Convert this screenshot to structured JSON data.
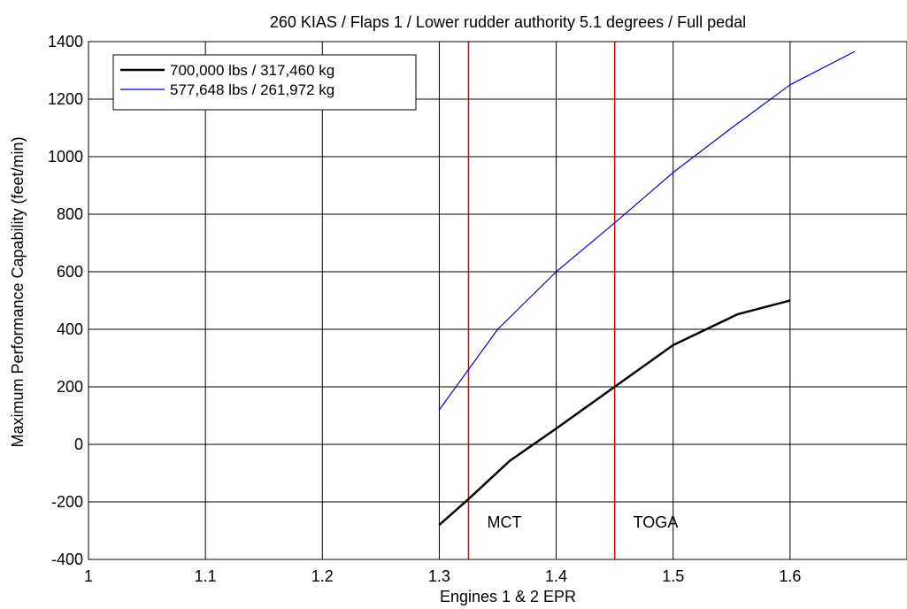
{
  "chart_data": {
    "type": "line",
    "title": "260 KIAS / Flaps 1 / Lower rudder authority 5.1 degrees / Full pedal",
    "xlabel": "Engines 1 & 2 EPR",
    "ylabel": "Maximum Performance Capability (feet/min)",
    "xlim": [
      1.0,
      1.7
    ],
    "ylim": [
      -400,
      1400
    ],
    "x_ticks": [
      1,
      1.1,
      1.2,
      1.3,
      1.4,
      1.5,
      1.6
    ],
    "x_tick_labels": [
      "1",
      "1.1",
      "1.2",
      "1.3",
      "1.4",
      "1.5",
      "1.6"
    ],
    "y_ticks": [
      -400,
      -200,
      0,
      200,
      400,
      600,
      800,
      1000,
      1200,
      1400
    ],
    "y_tick_labels": [
      "-400",
      "-200",
      "0",
      "200",
      "400",
      "600",
      "800",
      "1000",
      "1200",
      "1400"
    ],
    "grid": true,
    "legend_position": "top-left",
    "series": [
      {
        "name": "700,000 lbs / 317,460 kg",
        "color": "#000000",
        "x": [
          1.3,
          1.325,
          1.36,
          1.4,
          1.45,
          1.5,
          1.555,
          1.6
        ],
        "y": [
          -280,
          -190,
          -58,
          55,
          200,
          345,
          452,
          500
        ]
      },
      {
        "name": "577,648 lbs / 261,972 kg",
        "color": "#0000cc",
        "x": [
          1.3,
          1.35,
          1.4,
          1.45,
          1.5,
          1.55,
          1.6,
          1.655
        ],
        "y": [
          120,
          400,
          600,
          770,
          945,
          1100,
          1250,
          1365
        ]
      }
    ],
    "reference_lines": [
      {
        "label": "MCT",
        "x": 1.325,
        "color": "#dd0000"
      },
      {
        "label": "TOGA",
        "x": 1.45,
        "color": "#dd0000"
      }
    ]
  }
}
